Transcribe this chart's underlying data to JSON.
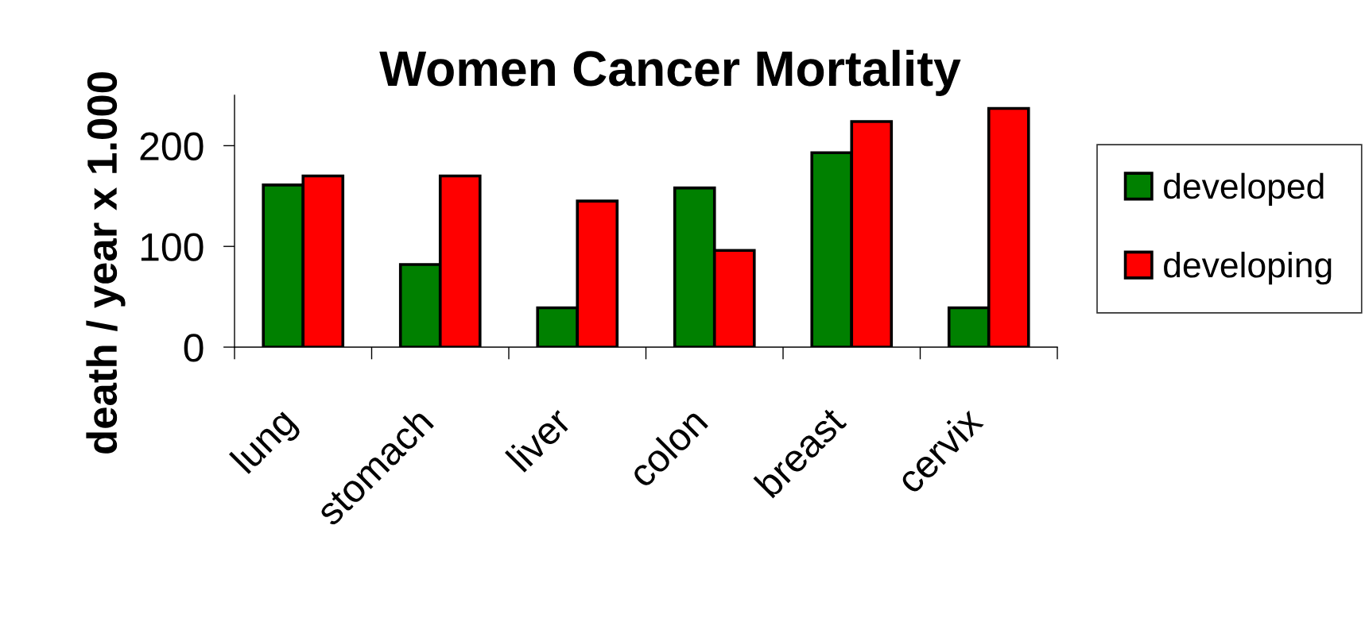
{
  "chart_data": {
    "type": "bar",
    "title": "Women Cancer Mortality",
    "ylabel": "death / year x 1.000",
    "categories": [
      "lung",
      "stomach",
      "liver",
      "colon",
      "breast",
      "cervix"
    ],
    "series": [
      {
        "name": "developed",
        "color": "#008000",
        "values": [
          161,
          82,
          39,
          158,
          193,
          39
        ]
      },
      {
        "name": "developing",
        "color": "#ff0000",
        "values": [
          170,
          170,
          145,
          96,
          224,
          237
        ]
      }
    ],
    "ylim": [
      0,
      250
    ],
    "yticks": [
      0,
      100,
      200
    ],
    "legend": "right"
  }
}
